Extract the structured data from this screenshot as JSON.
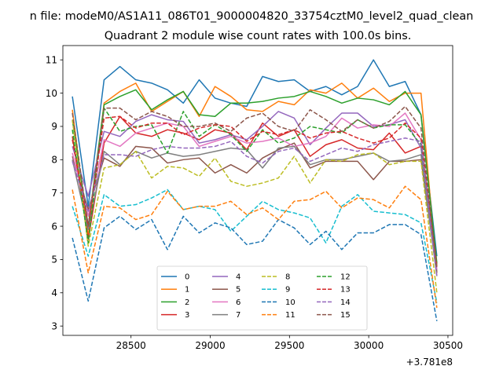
{
  "chart_data": {
    "type": "line",
    "suptitle": "n file: modeM0/AS1A11_086T01_9000004820_33754cztM0_level2_quad_clean",
    "title": "Quadrant 2 module wise count rates with 100.0s bins.",
    "xlabel": "",
    "ylabel": "",
    "offset_text": "+3.781e8",
    "xlim": [
      28070,
      30530
    ],
    "ylim": [
      2.72,
      11.43
    ],
    "xticks": [
      28500,
      29000,
      29500,
      30000,
      30500
    ],
    "yticks": [
      3,
      4,
      5,
      6,
      7,
      8,
      9,
      10,
      11
    ],
    "legend_position": "lower center",
    "x": [
      28130,
      28230,
      28330,
      28430,
      28530,
      28630,
      28730,
      28830,
      28930,
      29030,
      29130,
      29230,
      29330,
      29430,
      29530,
      29630,
      29730,
      29830,
      29930,
      30030,
      30130,
      30230,
      30330,
      30430
    ],
    "series": [
      {
        "name": "0",
        "color": "#1f77b4",
        "dash": "solid",
        "values": [
          9.9,
          6.6,
          10.4,
          10.8,
          10.4,
          10.3,
          10.1,
          9.7,
          10.4,
          9.85,
          9.7,
          9.6,
          10.5,
          10.35,
          10.4,
          10.05,
          10.2,
          9.95,
          10.2,
          11.0,
          10.2,
          10.35,
          9.35,
          5.1
        ]
      },
      {
        "name": "1",
        "color": "#ff7f0e",
        "dash": "solid",
        "values": [
          9.5,
          5.7,
          9.7,
          10.05,
          10.3,
          9.45,
          9.75,
          10.05,
          9.3,
          10.2,
          9.9,
          9.5,
          9.45,
          9.75,
          9.65,
          10.1,
          10.0,
          10.3,
          9.85,
          10.15,
          9.75,
          10.0,
          10.0,
          4.6
        ]
      },
      {
        "name": "2",
        "color": "#2ca02c",
        "dash": "solid",
        "values": [
          9.2,
          6.0,
          9.65,
          9.9,
          10.1,
          9.5,
          9.8,
          10.05,
          9.35,
          9.3,
          9.7,
          9.7,
          9.75,
          9.85,
          9.9,
          10.05,
          9.9,
          9.7,
          9.85,
          9.8,
          9.65,
          10.05,
          9.35,
          4.9
        ]
      },
      {
        "name": "3",
        "color": "#d62728",
        "dash": "solid",
        "values": [
          8.7,
          5.6,
          8.5,
          9.3,
          8.8,
          8.7,
          8.9,
          8.8,
          8.6,
          8.9,
          8.8,
          8.3,
          9.1,
          8.7,
          8.9,
          8.1,
          8.45,
          8.6,
          8.35,
          8.3,
          8.8,
          8.2,
          8.4,
          4.8
        ]
      },
      {
        "name": "4",
        "color": "#9467bd",
        "dash": "solid",
        "values": [
          8.4,
          6.9,
          8.85,
          8.7,
          9.15,
          9.35,
          9.2,
          9.15,
          8.5,
          8.6,
          8.75,
          8.6,
          9.0,
          9.45,
          9.25,
          8.45,
          8.95,
          9.4,
          9.4,
          9.0,
          9.05,
          9.2,
          8.35,
          4.65
        ]
      },
      {
        "name": "5",
        "color": "#8c564b",
        "dash": "solid",
        "values": [
          8.1,
          6.5,
          8.05,
          7.8,
          8.4,
          8.35,
          7.9,
          8.0,
          8.05,
          7.6,
          7.85,
          7.6,
          8.05,
          8.3,
          8.5,
          7.75,
          7.95,
          7.95,
          7.95,
          7.4,
          7.95,
          7.95,
          8.0,
          4.6
        ]
      },
      {
        "name": "6",
        "color": "#e377c2",
        "dash": "solid",
        "values": [
          8.2,
          6.3,
          8.6,
          8.4,
          8.8,
          8.95,
          9.1,
          9.0,
          8.4,
          8.55,
          8.7,
          8.5,
          8.55,
          8.65,
          8.4,
          8.5,
          8.7,
          9.25,
          8.95,
          9.05,
          9.0,
          9.4,
          8.6,
          4.7
        ]
      },
      {
        "name": "7",
        "color": "#7f7f7f",
        "dash": "solid",
        "values": [
          8.0,
          5.9,
          8.25,
          7.85,
          8.25,
          8.05,
          8.2,
          8.1,
          8.15,
          8.25,
          8.35,
          8.3,
          7.75,
          8.35,
          8.4,
          7.85,
          8.0,
          8.0,
          8.1,
          8.2,
          7.95,
          8.0,
          8.15,
          4.5
        ]
      },
      {
        "name": "8",
        "color": "#bcbd22",
        "dash": "dashed",
        "values": [
          9.2,
          5.4,
          7.75,
          7.85,
          8.25,
          7.45,
          7.8,
          7.75,
          7.5,
          8.05,
          7.35,
          7.2,
          7.3,
          7.45,
          8.1,
          7.3,
          8.0,
          7.95,
          8.15,
          8.2,
          7.85,
          7.95,
          7.95,
          4.0
        ]
      },
      {
        "name": "9",
        "color": "#17becf",
        "dash": "dashed",
        "values": [
          6.6,
          5.1,
          6.95,
          6.6,
          6.65,
          6.85,
          7.1,
          6.5,
          6.6,
          6.5,
          5.85,
          6.3,
          6.75,
          6.5,
          6.4,
          6.25,
          5.5,
          6.6,
          6.95,
          6.45,
          6.4,
          6.35,
          6.1,
          3.7
        ]
      },
      {
        "name": "10",
        "color": "#1f77b4",
        "dash": "dashed",
        "values": [
          5.65,
          3.75,
          5.95,
          6.3,
          5.9,
          6.2,
          5.3,
          6.3,
          5.8,
          6.1,
          5.95,
          5.45,
          5.55,
          6.2,
          5.95,
          5.45,
          5.85,
          5.3,
          5.8,
          5.8,
          6.05,
          6.05,
          5.75,
          3.15
        ]
      },
      {
        "name": "11",
        "color": "#ff7f0e",
        "dash": "dashed",
        "values": [
          7.1,
          4.6,
          6.6,
          6.55,
          6.2,
          6.35,
          7.05,
          6.5,
          6.6,
          6.6,
          6.75,
          6.35,
          6.55,
          6.2,
          6.75,
          6.8,
          7.05,
          6.55,
          6.85,
          6.8,
          6.55,
          7.2,
          6.8,
          3.55
        ]
      },
      {
        "name": "12",
        "color": "#2ca02c",
        "dash": "dashed",
        "values": [
          8.9,
          5.5,
          9.55,
          8.85,
          9.0,
          9.05,
          8.2,
          9.45,
          8.7,
          9.05,
          8.75,
          8.25,
          8.9,
          8.5,
          8.65,
          9.0,
          8.9,
          8.8,
          9.2,
          8.95,
          9.05,
          9.05,
          8.45,
          4.85
        ]
      },
      {
        "name": "13",
        "color": "#d62728",
        "dash": "dashed",
        "values": [
          8.6,
          6.0,
          9.25,
          9.3,
          8.95,
          9.1,
          9.1,
          8.75,
          8.95,
          9.05,
          9.0,
          8.55,
          8.85,
          8.75,
          8.9,
          8.65,
          8.8,
          8.85,
          8.65,
          8.5,
          8.65,
          9.1,
          8.65,
          4.8
        ]
      },
      {
        "name": "14",
        "color": "#9467bd",
        "dash": "dashed",
        "values": [
          7.95,
          6.45,
          8.15,
          8.15,
          8.1,
          8.3,
          8.4,
          8.35,
          8.35,
          8.4,
          8.55,
          8.1,
          7.9,
          8.25,
          8.35,
          7.95,
          8.15,
          8.35,
          8.25,
          8.45,
          8.55,
          8.65,
          8.55,
          4.5
        ]
      },
      {
        "name": "15",
        "color": "#8c564b",
        "dash": "dashed",
        "values": [
          9.4,
          6.0,
          9.55,
          9.55,
          9.2,
          9.45,
          9.3,
          9.0,
          9.0,
          9.1,
          8.85,
          9.25,
          9.4,
          9.0,
          8.85,
          9.5,
          9.2,
          8.85,
          9.2,
          8.95,
          9.15,
          9.6,
          8.95,
          4.75
        ]
      }
    ]
  }
}
